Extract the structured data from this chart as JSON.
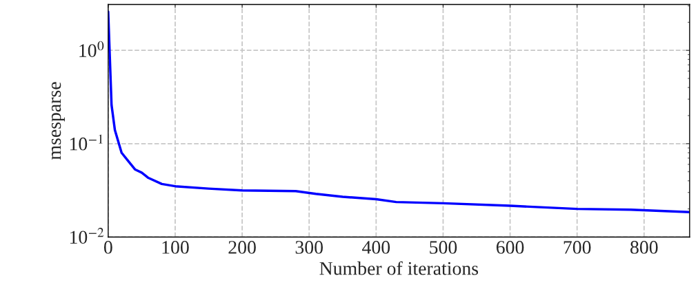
{
  "chart_data": {
    "type": "line",
    "xlabel": "Number of iterations",
    "ylabel": "msesparse",
    "x": [
      0,
      5,
      10,
      20,
      30,
      40,
      50,
      60,
      80,
      100,
      150,
      200,
      280,
      310,
      350,
      400,
      430,
      500,
      600,
      700,
      780,
      868
    ],
    "series": [
      {
        "color": "#0000ff",
        "values": [
          2.6,
          0.26,
          0.14,
          0.08,
          0.065,
          0.053,
          0.049,
          0.043,
          0.037,
          0.035,
          0.033,
          0.0316,
          0.031,
          0.029,
          0.027,
          0.0254,
          0.0237,
          0.023,
          0.0216,
          0.02,
          0.0196,
          0.0185
        ]
      }
    ],
    "log": "y",
    "xlim": [
      0,
      868
    ],
    "ylim": [
      0.01,
      3.1
    ],
    "xticks": [
      0,
      100,
      200,
      300,
      400,
      500,
      600,
      700,
      800
    ],
    "yticks": [
      {
        "value": 0.01,
        "label": "10$^{−2}$"
      },
      {
        "value": 0.1,
        "label": "10$^{−1}$"
      },
      {
        "value": 1,
        "label": "10$^{0}$"
      }
    ],
    "grid": true,
    "line_style": "solid",
    "marker": "none"
  }
}
